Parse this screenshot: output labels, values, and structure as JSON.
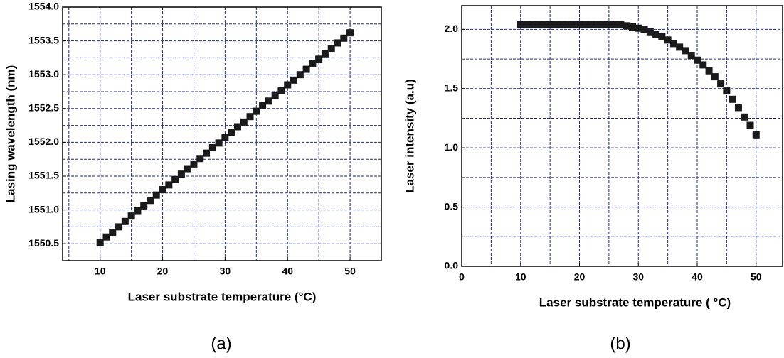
{
  "chart_data": [
    {
      "type": "scatter",
      "caption": "(a)",
      "xlabel": "Laser substrate temperature (°C)",
      "ylabel": "Lasing wavelength (nm)",
      "x": [
        10,
        11,
        12,
        13,
        14,
        15,
        16,
        17,
        18,
        19,
        20,
        21,
        22,
        23,
        24,
        25,
        26,
        27,
        28,
        29,
        30,
        31,
        32,
        33,
        34,
        35,
        36,
        37,
        38,
        39,
        40,
        41,
        42,
        43,
        44,
        45,
        46,
        47,
        48,
        49,
        50
      ],
      "values": [
        1550.52,
        1550.6,
        1550.67,
        1550.75,
        1550.83,
        1550.91,
        1550.99,
        1551.06,
        1551.14,
        1551.22,
        1551.3,
        1551.37,
        1551.45,
        1551.53,
        1551.61,
        1551.68,
        1551.76,
        1551.84,
        1551.92,
        1551.99,
        1552.07,
        1552.15,
        1552.23,
        1552.3,
        1552.38,
        1552.46,
        1552.54,
        1552.61,
        1552.69,
        1552.77,
        1552.85,
        1552.92,
        1553.0,
        1553.08,
        1553.16,
        1553.23,
        1553.31,
        1553.39,
        1553.47,
        1553.54,
        1553.62
      ],
      "color": "#1a1a1a",
      "grid": true,
      "xlim": [
        4,
        55
      ],
      "xticks": [
        10,
        20,
        30,
        40,
        50
      ],
      "minor_xticks": [
        5,
        15,
        25,
        35,
        45,
        55
      ],
      "ylim": [
        1550.25,
        1554.0
      ],
      "yticks": [
        {
          "value": 1550.5,
          "label": "1550.5"
        },
        {
          "value": 1551,
          "label": "1551.0"
        },
        {
          "value": 1551.5,
          "label": "1551.5"
        },
        {
          "value": 1552,
          "label": "1552.0"
        },
        {
          "value": 1552.5,
          "label": "1552.5"
        },
        {
          "value": 1553,
          "label": "1553.0"
        },
        {
          "value": 1553.5,
          "label": "1553.5"
        },
        {
          "value": 1554,
          "label": "1554.0"
        }
      ],
      "minor_yticks": [
        1550.75,
        1551.25,
        1551.75,
        1552.25,
        1552.75,
        1553.25,
        1553.75
      ]
    },
    {
      "type": "scatter",
      "caption": "(b)",
      "xlabel": "Laser substrate temperature ( °C)",
      "ylabel": "Laser intensity (a.u)",
      "x": [
        10,
        11,
        12,
        13,
        14,
        15,
        16,
        17,
        18,
        19,
        20,
        21,
        22,
        23,
        24,
        25,
        26,
        27,
        28,
        29,
        30,
        31,
        32,
        33,
        34,
        35,
        36,
        37,
        38,
        39,
        40,
        41,
        42,
        43,
        44,
        45,
        46,
        47,
        48,
        49,
        50
      ],
      "values": [
        2.04,
        2.04,
        2.04,
        2.04,
        2.04,
        2.04,
        2.04,
        2.04,
        2.04,
        2.04,
        2.04,
        2.04,
        2.04,
        2.04,
        2.04,
        2.04,
        2.04,
        2.04,
        2.03,
        2.02,
        2.01,
        2.0,
        1.98,
        1.96,
        1.94,
        1.91,
        1.88,
        1.85,
        1.82,
        1.78,
        1.74,
        1.7,
        1.65,
        1.6,
        1.54,
        1.48,
        1.41,
        1.34,
        1.26,
        1.19,
        1.11
      ],
      "color": "#1a1a1a",
      "grid": true,
      "xlim": [
        0,
        54.5
      ],
      "xticks": [
        0,
        10,
        20,
        30,
        40,
        50
      ],
      "minor_xticks": [
        5,
        15,
        25,
        35,
        45
      ],
      "ylim": [
        0,
        2.2
      ],
      "yticks": [
        {
          "value": 0,
          "label": "0.0"
        },
        {
          "value": 0.5,
          "label": "0.5"
        },
        {
          "value": 1,
          "label": "1.0"
        },
        {
          "value": 1.5,
          "label": "1.5"
        },
        {
          "value": 2,
          "label": "2.0"
        }
      ],
      "minor_yticks": [
        0.25,
        0.75,
        1.25,
        1.75
      ]
    }
  ]
}
